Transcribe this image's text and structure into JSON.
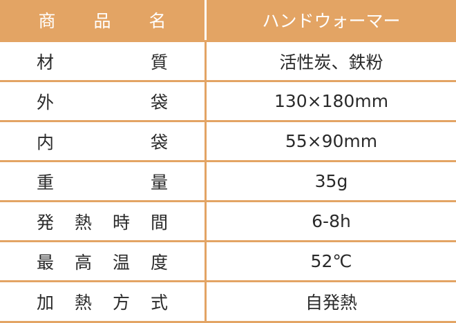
{
  "colors": {
    "header_bg": "#e3a464",
    "border": "#e3a464",
    "header_text": "#ffffff",
    "text": "#2a2a2a"
  },
  "header": {
    "label": "商品名",
    "value": "ハンドウォーマー"
  },
  "rows": [
    {
      "label": "材質",
      "value": "活性炭、鉄粉"
    },
    {
      "label": "外袋",
      "value": "130×180mm"
    },
    {
      "label": "内袋",
      "value": "55×90mm"
    },
    {
      "label": "重量",
      "value": "35g"
    },
    {
      "label": "発熱時間",
      "value": "6-8h"
    },
    {
      "label": "最高温度",
      "value": "52℃"
    },
    {
      "label": "加熱方式",
      "value": "自発熱"
    }
  ]
}
